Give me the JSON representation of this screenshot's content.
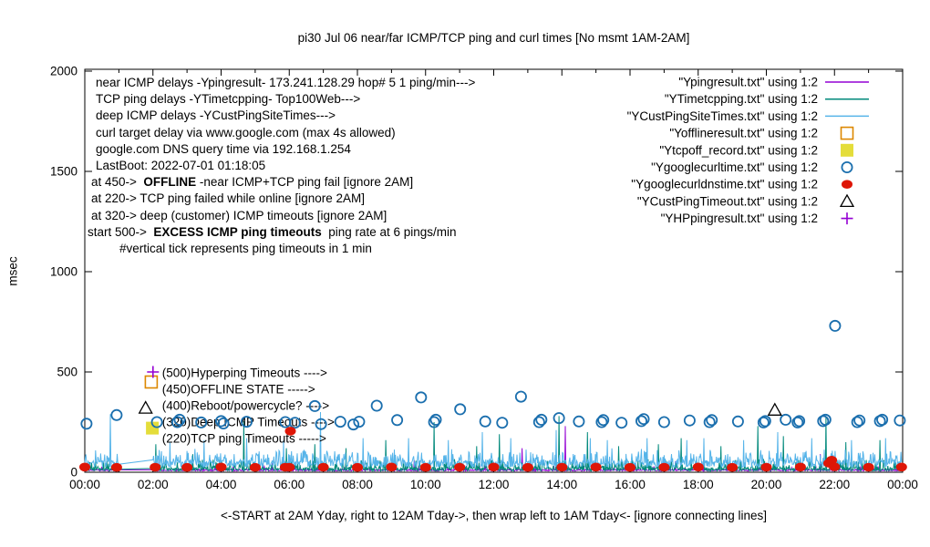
{
  "title": "pi30 Jul 06  near/far ICMP/TCP ping and curl times [No msmt 1AM-2AM]",
  "ylabel": "msec",
  "xlabel": "<-START at 2AM Yday, right to 12AM Tday->, then wrap left to 1AM Tday<- [ignore connecting lines]",
  "info_block": {
    "lines": [
      {
        "indent": 0,
        "segments": [
          {
            "t": "near ICMP delays -Ypingresult- 173.241.128.29 hop# 5 1 ping/min--->"
          }
        ]
      },
      {
        "indent": 0,
        "segments": [
          {
            "t": "TCP ping delays -YTimetcpping- Top100Web--->"
          }
        ]
      },
      {
        "indent": 0,
        "segments": [
          {
            "t": "deep ICMP delays -YCustPingSiteTimes--->"
          }
        ]
      },
      {
        "indent": 0,
        "segments": [
          {
            "t": "curl target delay via www.google.com (max 4s allowed)"
          }
        ]
      },
      {
        "indent": 0,
        "segments": [
          {
            "t": "google.com DNS query time via 192.168.1.254"
          }
        ]
      },
      {
        "indent": 0,
        "segments": [
          {
            "t": "LastBoot: 2022-07-01 01:18:05"
          }
        ]
      },
      {
        "indent": -5,
        "segments": [
          {
            "t": "at 450->  "
          },
          {
            "t": "OFFLINE",
            "b": true
          },
          {
            "t": " -near ICMP+TCP ping fail [ignore 2AM]"
          }
        ]
      },
      {
        "indent": -5,
        "segments": [
          {
            "t": "at 220-> TCP ping failed while online [ignore 2AM]"
          }
        ]
      },
      {
        "indent": -5,
        "segments": [
          {
            "t": "at 320-> deep (customer) ICMP timeouts [ignore 2AM]"
          }
        ]
      },
      {
        "indent": -9,
        "segments": [
          {
            "t": "start 500->  "
          },
          {
            "t": "EXCESS ICMP ping timeouts",
            "b": true
          },
          {
            "t": "  ping rate at 6 pings/min"
          }
        ]
      },
      {
        "indent": 26,
        "segments": [
          {
            "t": "#vertical tick represents ping timeouts in 1 min"
          }
        ]
      }
    ]
  },
  "chart_data": {
    "type": "line",
    "title": "pi30 Jul 06  near/far ICMP/TCP ping and curl times [No msmt 1AM-2AM]",
    "xlabel": "<-START at 2AM Yday, right to 12AM Tday->, then wrap left to 1AM Tday<- [ignore connecting lines]",
    "ylabel": "msec",
    "ylim": [
      0,
      2000
    ],
    "y_ticks": [
      0,
      500,
      1000,
      1500,
      2000
    ],
    "x_major_ticks": [
      "00:00",
      "02:00",
      "04:00",
      "06:00",
      "08:00",
      "10:00",
      "12:00",
      "14:00",
      "16:00",
      "18:00",
      "20:00",
      "22:00",
      "00:00"
    ],
    "x_minor_every_minutes": 60,
    "grid": "off",
    "legend_position": "top-right",
    "gap": {
      "start": "01:00",
      "end": "02:00",
      "label": "No msmt 1AM-2AM"
    },
    "line_series": [
      {
        "name": "near-icmp-ping",
        "legend": "\"Ypingresult.txt\" using 1:2",
        "color": "#9400d3",
        "seed": 11,
        "base": {
          "min": 6,
          "noise": 9,
          "burst_p": 0.05,
          "burst": 25
        },
        "spikes": [
          [
            "02:10",
            60
          ],
          [
            "05:30",
            45
          ],
          [
            "09:40",
            60
          ],
          [
            "12:50",
            120
          ],
          [
            "14:06",
            230
          ],
          [
            "17:20",
            55
          ],
          [
            "21:35",
            90
          ]
        ]
      },
      {
        "name": "tcp-ping",
        "legend": "\"YTimetcpping.txt\" using 1:2",
        "color": "#00897b",
        "seed": 22,
        "base": {
          "min": 6,
          "noise": 18,
          "burst_p": 0.3,
          "burst": 45
        },
        "spikes": [
          [
            "02:05",
            140
          ],
          [
            "03:10",
            90
          ],
          [
            "04:40",
            255
          ],
          [
            "05:55",
            120
          ],
          [
            "06:45",
            140
          ],
          [
            "07:40",
            120
          ],
          [
            "08:50",
            160
          ],
          [
            "10:15",
            250
          ],
          [
            "11:30",
            130
          ],
          [
            "12:10",
            190
          ],
          [
            "13:55",
            280
          ],
          [
            "14:45",
            200
          ],
          [
            "15:40",
            130
          ],
          [
            "16:50",
            140
          ],
          [
            "17:30",
            170
          ],
          [
            "18:40",
            130
          ],
          [
            "19:45",
            230
          ],
          [
            "20:30",
            180
          ],
          [
            "21:45",
            275
          ],
          [
            "22:20",
            150
          ],
          [
            "23:20",
            160
          ]
        ]
      },
      {
        "name": "deep-icmp",
        "legend": "\"YCustPingSiteTimes.txt\" using 1:2",
        "color": "#56b4e9",
        "seed": 33,
        "base": {
          "min": 25,
          "noise": 35,
          "burst_p": 0.35,
          "burst": 60
        },
        "spikes": [
          [
            "00:45",
            290
          ],
          [
            "02:30",
            150
          ],
          [
            "03:30",
            160
          ],
          [
            "04:45",
            170
          ],
          [
            "05:50",
            160
          ],
          [
            "06:55",
            300
          ],
          [
            "08:10",
            170
          ],
          [
            "09:30",
            170
          ],
          [
            "10:40",
            160
          ],
          [
            "11:40",
            200
          ],
          [
            "12:30",
            170
          ],
          [
            "13:50",
            210
          ],
          [
            "14:50",
            170
          ],
          [
            "15:20",
            160
          ],
          [
            "16:30",
            170
          ],
          [
            "17:40",
            160
          ],
          [
            "18:10",
            170
          ],
          [
            "19:20",
            160
          ],
          [
            "20:20",
            200
          ],
          [
            "21:20",
            170
          ],
          [
            "22:30",
            160
          ],
          [
            "23:30",
            170
          ]
        ]
      }
    ],
    "point_series": [
      {
        "name": "offline-result",
        "legend": "\"Yofflineresult.txt\" using 1:2",
        "marker": "open-square",
        "color": "#dd8800",
        "points": [
          [
            "01:57",
            450
          ]
        ]
      },
      {
        "name": "tcpoff-record",
        "legend": "\"Ytcpoff_record.txt\" using 1:2",
        "marker": "filled-square",
        "color": "#e4dd3a",
        "points": [
          [
            "01:59",
            220
          ]
        ]
      },
      {
        "name": "google-curl-time",
        "legend": "\"Ygooglecurltime.txt\" using 1:2",
        "marker": "open-circle",
        "color": "#1b6fae",
        "points": [
          [
            "00:03",
            242
          ],
          [
            "00:56",
            285
          ],
          [
            "02:07",
            250
          ],
          [
            "02:43",
            250
          ],
          [
            "02:47",
            262
          ],
          [
            "03:25",
            248
          ],
          [
            "04:00",
            255
          ],
          [
            "04:04",
            243
          ],
          [
            "04:45",
            252
          ],
          [
            "05:53",
            250
          ],
          [
            "06:10",
            247
          ],
          [
            "06:45",
            330
          ],
          [
            "06:56",
            240
          ],
          [
            "07:30",
            252
          ],
          [
            "07:53",
            238
          ],
          [
            "08:03",
            252
          ],
          [
            "08:34",
            332
          ],
          [
            "09:10",
            260
          ],
          [
            "09:52",
            373
          ],
          [
            "10:15",
            250
          ],
          [
            "10:18",
            262
          ],
          [
            "11:01",
            314
          ],
          [
            "11:45",
            253
          ],
          [
            "12:15",
            247
          ],
          [
            "12:48",
            377
          ],
          [
            "13:20",
            250
          ],
          [
            "13:24",
            262
          ],
          [
            "13:55",
            270
          ],
          [
            "14:30",
            253
          ],
          [
            "15:10",
            250
          ],
          [
            "15:13",
            260
          ],
          [
            "15:45",
            247
          ],
          [
            "16:20",
            255
          ],
          [
            "16:24",
            265
          ],
          [
            "17:00",
            250
          ],
          [
            "17:45",
            258
          ],
          [
            "18:20",
            250
          ],
          [
            "18:24",
            260
          ],
          [
            "19:10",
            253
          ],
          [
            "19:55",
            248
          ],
          [
            "19:58",
            255
          ],
          [
            "20:34",
            262
          ],
          [
            "20:55",
            248
          ],
          [
            "20:58",
            255
          ],
          [
            "21:40",
            255
          ],
          [
            "21:44",
            262
          ],
          [
            "22:01",
            730
          ],
          [
            "22:40",
            250
          ],
          [
            "22:44",
            258
          ],
          [
            "23:20",
            255
          ],
          [
            "23:24",
            262
          ],
          [
            "23:55",
            258
          ]
        ]
      },
      {
        "name": "google-curl-dns-time",
        "legend": "\"Ygooglecurldnstime.txt\" using 1:2",
        "marker": "filled-circle",
        "color": "#de1607",
        "points": [
          [
            "00:00",
            26
          ],
          [
            "00:56",
            24
          ],
          [
            "02:04",
            25
          ],
          [
            "03:00",
            24
          ],
          [
            "04:00",
            26
          ],
          [
            "05:00",
            24
          ],
          [
            "05:53",
            25
          ],
          [
            "06:00",
            25
          ],
          [
            "06:02",
            205
          ],
          [
            "07:00",
            25
          ],
          [
            "08:00",
            24
          ],
          [
            "09:00",
            26
          ],
          [
            "10:00",
            24
          ],
          [
            "11:00",
            25
          ],
          [
            "12:00",
            26
          ],
          [
            "13:00",
            24
          ],
          [
            "14:00",
            25
          ],
          [
            "15:00",
            26
          ],
          [
            "16:00",
            24
          ],
          [
            "17:00",
            25
          ],
          [
            "18:00",
            26
          ],
          [
            "19:00",
            24
          ],
          [
            "20:00",
            25
          ],
          [
            "21:00",
            26
          ],
          [
            "21:50",
            45
          ],
          [
            "21:55",
            60
          ],
          [
            "22:00",
            27
          ],
          [
            "23:00",
            25
          ],
          [
            "23:58",
            26
          ]
        ]
      },
      {
        "name": "cust-ping-timeout",
        "legend": "\"YCustPingTimeout.txt\" using 1:2",
        "marker": "open-triangle",
        "color": "#000000",
        "points": [
          [
            "01:47",
            320
          ],
          [
            "20:15",
            310
          ]
        ]
      },
      {
        "name": "hp-ping-result",
        "legend": "\"YHPpingresult.txt\" using 1:2",
        "marker": "plus",
        "color": "#9400d3",
        "points": [
          [
            "02:00",
            500
          ]
        ]
      }
    ],
    "plot_labels": [
      {
        "t": "02:16",
        "v": 495,
        "text": "(500)Hyperping Timeouts ---->"
      },
      {
        "t": "02:16",
        "v": 414,
        "text": "(450)OFFLINE STATE ----->"
      },
      {
        "t": "02:16",
        "v": 332,
        "text": "(400)Reboot/powercycle? ---->"
      },
      {
        "t": "02:16",
        "v": 250,
        "text": "(320)Deep ICMP Timeouts ---->"
      },
      {
        "t": "02:16",
        "v": 168,
        "text": "(220)TCP ping Timeouts ----->"
      }
    ]
  }
}
